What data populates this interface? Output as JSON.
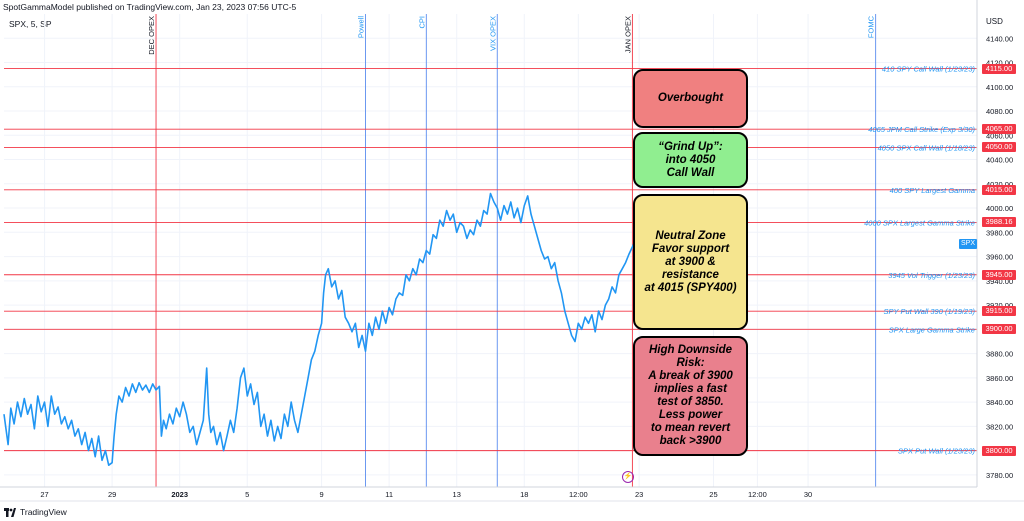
{
  "header": {
    "publish_text": "SpotGammaModel published on TradingView.com, Jan 23, 2023 07:56 UTC-5",
    "symbol_text": "SPX, 5, SP"
  },
  "footer": {
    "brand": "TradingView"
  },
  "colors": {
    "price_line": "#2196f3",
    "level_line": "#f23645",
    "event_blue": "#5b8def",
    "event_red": "#f23645",
    "label_text": "#2196f3",
    "box_overbought": "#f08080",
    "box_grind": "#90ee90",
    "box_neutral": "#f5e58f",
    "box_risk": "#e9808d"
  },
  "chart_data": {
    "type": "line",
    "title": "",
    "xlabel": "",
    "ylabel": "USD",
    "ylim": [
      3770,
      4160
    ],
    "y_ticks": [
      3780,
      3800,
      3820,
      3840,
      3860,
      3880,
      3900,
      3920,
      3940,
      3960,
      3980,
      4000,
      4020,
      4040,
      4060,
      4080,
      4100,
      4120,
      4140
    ],
    "x_ticks": [
      {
        "label": "27",
        "x": 3
      },
      {
        "label": "29",
        "x": 13
      },
      {
        "label": "2023",
        "x": 23
      },
      {
        "label": "5",
        "x": 33
      },
      {
        "label": "9",
        "x": 44
      },
      {
        "label": "11",
        "x": 54
      },
      {
        "label": "13",
        "x": 64
      },
      {
        "label": "18",
        "x": 74
      },
      {
        "label": "12:00",
        "x": 82
      },
      {
        "label": "23",
        "x": 91
      },
      {
        "label": "25",
        "x": 102
      },
      {
        "label": "12:00",
        "x": 108.5
      },
      {
        "label": "30",
        "x": 116
      }
    ],
    "x_range": [
      -3,
      141
    ],
    "series": [
      {
        "values_xy": [
          [
            -3,
            3830
          ],
          [
            -2.4,
            3805
          ],
          [
            -2,
            3835
          ],
          [
            -1.5,
            3822
          ],
          [
            -1,
            3840
          ],
          [
            -0.5,
            3828
          ],
          [
            0,
            3843
          ],
          [
            0.5,
            3830
          ],
          [
            1,
            3838
          ],
          [
            1.5,
            3818
          ],
          [
            2,
            3845
          ],
          [
            2.5,
            3832
          ],
          [
            3,
            3840
          ],
          [
            3.5,
            3820
          ],
          [
            4,
            3845
          ],
          [
            4.5,
            3830
          ],
          [
            5,
            3836
          ],
          [
            5.5,
            3822
          ],
          [
            6,
            3828
          ],
          [
            6.5,
            3818
          ],
          [
            7,
            3825
          ],
          [
            7.5,
            3812
          ],
          [
            8,
            3818
          ],
          [
            8.5,
            3805
          ],
          [
            9,
            3815
          ],
          [
            9.5,
            3800
          ],
          [
            10,
            3810
          ],
          [
            10.5,
            3795
          ],
          [
            11,
            3812
          ],
          [
            11.5,
            3792
          ],
          [
            12,
            3800
          ],
          [
            12.5,
            3788
          ],
          [
            13,
            3790
          ],
          [
            13.3,
            3812
          ],
          [
            13.6,
            3830
          ],
          [
            14,
            3845
          ],
          [
            14.5,
            3840
          ],
          [
            15,
            3852
          ],
          [
            15.5,
            3845
          ],
          [
            16,
            3855
          ],
          [
            16.5,
            3848
          ],
          [
            17,
            3856
          ],
          [
            17.5,
            3850
          ],
          [
            18,
            3854
          ],
          [
            18.5,
            3848
          ],
          [
            19,
            3855
          ],
          [
            19.5,
            3850
          ],
          [
            20,
            3853
          ],
          [
            20.3,
            3812
          ],
          [
            20.6,
            3825
          ],
          [
            21,
            3818
          ],
          [
            21.5,
            3830
          ],
          [
            22,
            3822
          ],
          [
            22.5,
            3835
          ],
          [
            23,
            3828
          ],
          [
            23.5,
            3840
          ],
          [
            24,
            3830
          ],
          [
            24.5,
            3815
          ],
          [
            25,
            3820
          ],
          [
            25.5,
            3805
          ],
          [
            26,
            3815
          ],
          [
            26.5,
            3825
          ],
          [
            27,
            3868
          ],
          [
            27.3,
            3830
          ],
          [
            27.6,
            3815
          ],
          [
            28,
            3820
          ],
          [
            28.5,
            3805
          ],
          [
            29,
            3815
          ],
          [
            29.5,
            3800
          ],
          [
            30,
            3812
          ],
          [
            30.5,
            3825
          ],
          [
            31,
            3815
          ],
          [
            31.5,
            3835
          ],
          [
            32,
            3860
          ],
          [
            32.5,
            3868
          ],
          [
            33,
            3845
          ],
          [
            33.5,
            3855
          ],
          [
            34,
            3838
          ],
          [
            34.5,
            3848
          ],
          [
            35,
            3820
          ],
          [
            35.5,
            3830
          ],
          [
            36,
            3812
          ],
          [
            36.5,
            3825
          ],
          [
            37,
            3808
          ],
          [
            37.5,
            3820
          ],
          [
            38,
            3810
          ],
          [
            38.5,
            3830
          ],
          [
            39,
            3820
          ],
          [
            39.5,
            3840
          ],
          [
            40,
            3825
          ],
          [
            40.5,
            3815
          ],
          [
            41,
            3830
          ],
          [
            41.5,
            3845
          ],
          [
            42,
            3860
          ],
          [
            42.5,
            3875
          ],
          [
            43,
            3882
          ],
          [
            43.5,
            3895
          ],
          [
            44,
            3905
          ],
          [
            44.3,
            3930
          ],
          [
            44.6,
            3945
          ],
          [
            45,
            3950
          ],
          [
            45.5,
            3935
          ],
          [
            46,
            3940
          ],
          [
            46.5,
            3925
          ],
          [
            47,
            3932
          ],
          [
            47.5,
            3910
          ],
          [
            48,
            3905
          ],
          [
            48.5,
            3898
          ],
          [
            49,
            3905
          ],
          [
            49.5,
            3885
          ],
          [
            50,
            3895
          ],
          [
            50.5,
            3882
          ],
          [
            51,
            3905
          ],
          [
            51.5,
            3895
          ],
          [
            52,
            3910
          ],
          [
            52.5,
            3900
          ],
          [
            53,
            3915
          ],
          [
            53.5,
            3905
          ],
          [
            54,
            3918
          ],
          [
            54.5,
            3912
          ],
          [
            55,
            3925
          ],
          [
            55.5,
            3930
          ],
          [
            56,
            3928
          ],
          [
            56.5,
            3945
          ],
          [
            57,
            3940
          ],
          [
            57.5,
            3950
          ],
          [
            58,
            3945
          ],
          [
            58.5,
            3958
          ],
          [
            59,
            3955
          ],
          [
            59.5,
            3965
          ],
          [
            60,
            3962
          ],
          [
            60.5,
            3978
          ],
          [
            61,
            3975
          ],
          [
            61.5,
            3990
          ],
          [
            62,
            3985
          ],
          [
            62.5,
            3998
          ],
          [
            63,
            3990
          ],
          [
            63.5,
            3995
          ],
          [
            64,
            3980
          ],
          [
            64.5,
            3988
          ],
          [
            65,
            3985
          ],
          [
            65.5,
            3975
          ],
          [
            66,
            3982
          ],
          [
            66.5,
            3978
          ],
          [
            67,
            3990
          ],
          [
            67.5,
            3985
          ],
          [
            68,
            3998
          ],
          [
            68.5,
            3995
          ],
          [
            69,
            4012
          ],
          [
            69.5,
            4005
          ],
          [
            70,
            4000
          ],
          [
            70.5,
            3990
          ],
          [
            71,
            4002
          ],
          [
            71.5,
            3995
          ],
          [
            72,
            4005
          ],
          [
            72.5,
            3992
          ],
          [
            73,
            4000
          ],
          [
            73.5,
            3988
          ],
          [
            74,
            4002
          ],
          [
            74.5,
            4010
          ],
          [
            75,
            3995
          ],
          [
            75.5,
            3985
          ],
          [
            76,
            3975
          ],
          [
            76.5,
            3965
          ],
          [
            77,
            3958
          ],
          [
            77.5,
            3960
          ],
          [
            78,
            3950
          ],
          [
            78.5,
            3955
          ],
          [
            79,
            3940
          ],
          [
            79.5,
            3930
          ],
          [
            80,
            3915
          ],
          [
            80.5,
            3905
          ],
          [
            81,
            3895
          ],
          [
            81.5,
            3890
          ],
          [
            82,
            3905
          ],
          [
            82.5,
            3900
          ],
          [
            83,
            3910
          ],
          [
            83.5,
            3905
          ],
          [
            84,
            3912
          ],
          [
            84.5,
            3898
          ],
          [
            85,
            3915
          ],
          [
            85.5,
            3908
          ],
          [
            86,
            3920
          ],
          [
            86.5,
            3925
          ],
          [
            87,
            3935
          ],
          [
            87.5,
            3930
          ],
          [
            88,
            3945
          ],
          [
            88.5,
            3950
          ],
          [
            89,
            3955
          ],
          [
            89.5,
            3962
          ],
          [
            90,
            3968
          ],
          [
            90.3,
            3972
          ]
        ]
      }
    ],
    "price_levels": [
      {
        "value": 4115,
        "tag": "4115.00",
        "label": "410 SPY Call Wall (1/23/23)"
      },
      {
        "value": 4065,
        "tag": "4065.00",
        "label": "4065 JPM Call Strike (Exp 3/30)"
      },
      {
        "value": 4050,
        "tag": "4050.00",
        "label": "4050 SPX Call Wall (1/18/23)"
      },
      {
        "value": 4015,
        "tag": "4015.00",
        "label": "400 SPY Largest Gamma"
      },
      {
        "value": 3988.16,
        "tag": "3988.16",
        "label": "4000 SPX Largest Gamma Strike"
      },
      {
        "value": 3945,
        "tag": "3945.00",
        "label": "3945 Vol Trigger (1/23/23)"
      },
      {
        "value": 3915,
        "tag": "3915.00",
        "label": "SPY Put Wall 390 (1/19/23)"
      },
      {
        "value": 3900,
        "tag": "3900.00",
        "label": "SPX Large Gamma Strike"
      },
      {
        "value": 3800,
        "tag": "3800.00",
        "label": "SPX Put Wall (1/23/23)"
      }
    ],
    "events": [
      {
        "x": 19.5,
        "label": "DEC OPEX",
        "color": "red"
      },
      {
        "x": 50.5,
        "label": "Powell",
        "color": "blue"
      },
      {
        "x": 59.5,
        "label": "CPI",
        "color": "blue"
      },
      {
        "x": 70,
        "label": "VIX OPEX",
        "color": "blue"
      },
      {
        "x": 90,
        "label": "JAN OPEX",
        "color": "red"
      },
      {
        "x": 126,
        "label": "FOMC",
        "color": "blue"
      }
    ],
    "last_price_tag": "SPX"
  },
  "boxes": [
    {
      "name": "overbought",
      "text": "Overbought",
      "color": "#f08080"
    },
    {
      "name": "grind-up",
      "text": "“Grind Up”:\ninto 4050\nCall Wall",
      "color": "#90ee90"
    },
    {
      "name": "neutral-zone",
      "text": "Neutral Zone\nFavor support\nat 3900 &\nresistance\nat 4015 (SPY400)",
      "color": "#f5e58f"
    },
    {
      "name": "high-downside-risk",
      "text": "High Downside\nRisk:\nA break of 3900\nimplies a fast\ntest of 3850.\nLess power\nto mean revert\nback >3900",
      "color": "#e9808d"
    }
  ]
}
